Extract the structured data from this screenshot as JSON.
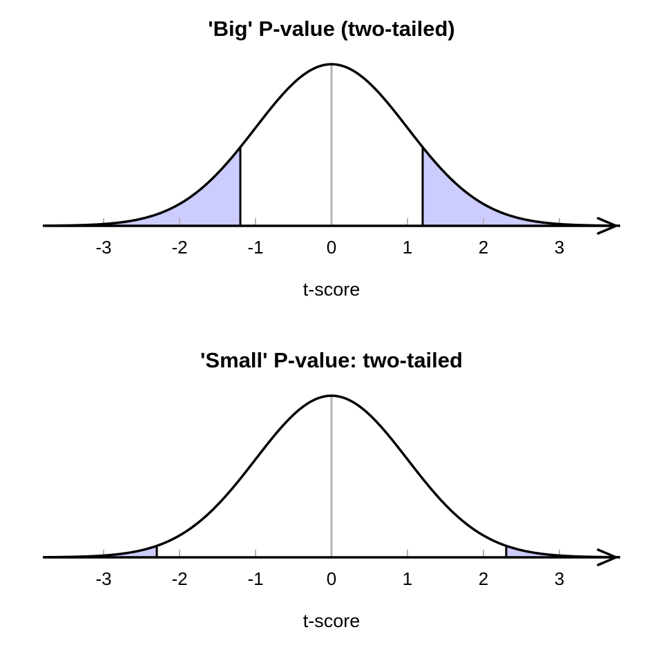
{
  "chart_data": [
    {
      "type": "area",
      "title": "'Big' P-value (two-tailed)",
      "xlabel": "t-score",
      "ylabel": "",
      "distribution": "t / normal density curve",
      "xlim": [
        -3.8,
        3.8
      ],
      "x_ticks": [
        -3,
        -2,
        -1,
        0,
        1,
        2,
        3
      ],
      "x_tick_labels": [
        "-3",
        "-2",
        "-1",
        "0",
        "1",
        "2",
        "3"
      ],
      "shaded_tails": {
        "lower": [
          -3.8,
          -1.2
        ],
        "upper": [
          1.2,
          3.8
        ]
      },
      "critical_value": 1.2,
      "center_line": 0,
      "grid": false,
      "legend": null
    },
    {
      "type": "area",
      "title": "'Small' P-value: two-tailed",
      "xlabel": "t-score",
      "ylabel": "",
      "distribution": "t / normal density curve",
      "xlim": [
        -3.8,
        3.8
      ],
      "x_ticks": [
        -3,
        -2,
        -1,
        0,
        1,
        2,
        3
      ],
      "x_tick_labels": [
        "-3",
        "-2",
        "-1",
        "0",
        "1",
        "2",
        "3"
      ],
      "shaded_tails": {
        "lower": [
          -3.8,
          -2.3
        ],
        "upper": [
          2.3,
          3.8
        ]
      },
      "critical_value": 2.3,
      "center_line": 0,
      "grid": false,
      "legend": null
    }
  ],
  "colors": {
    "curve": "#000000",
    "tail_fill": "#ccccff",
    "center_line": "#b3b3b3",
    "tick": "#b3b3b3",
    "axis": "#000000"
  },
  "panels": {
    "top": {
      "title": "'Big' P-value (two-tailed)",
      "xlabel": "t-score"
    },
    "bottom": {
      "title": "'Small' P-value: two-tailed",
      "xlabel": "t-score"
    }
  }
}
